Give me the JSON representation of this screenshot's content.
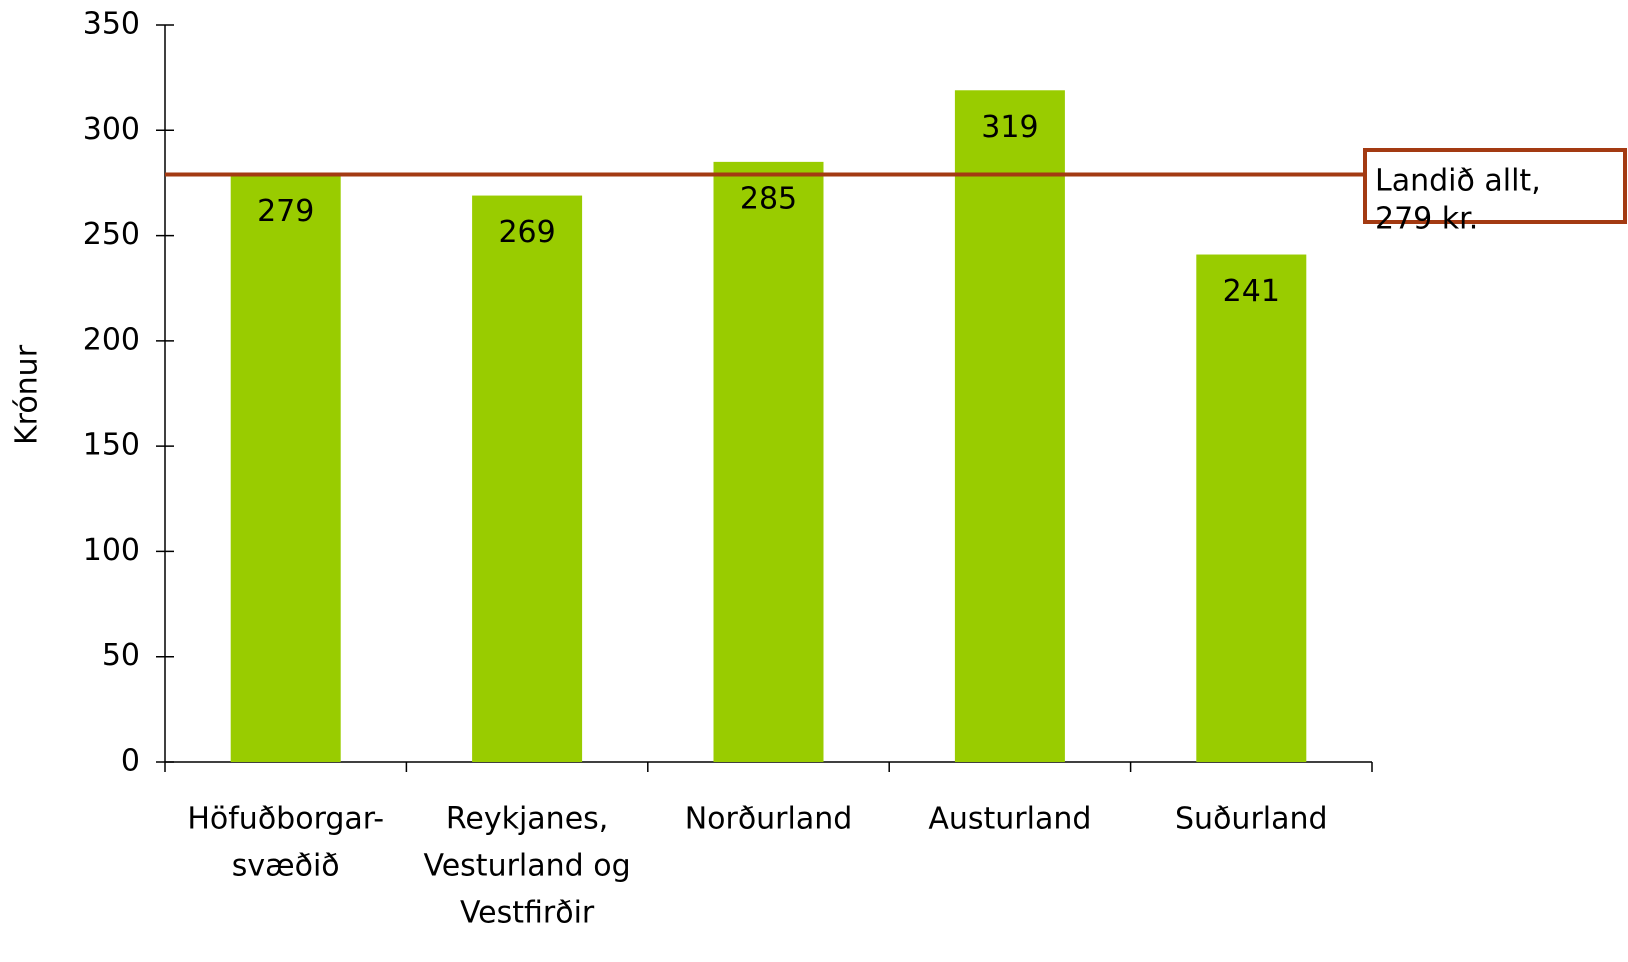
{
  "chart_data": {
    "type": "bar",
    "y_label": "Krónur",
    "categories": [
      [
        "Höfuðborgar-",
        "svæðið"
      ],
      [
        "Reykjanes,",
        "Vesturland og",
        "Vestfirðir"
      ],
      [
        "Norðurland"
      ],
      [
        "Austurland"
      ],
      [
        "Suðurland"
      ]
    ],
    "values": [
      279,
      269,
      285,
      319,
      241
    ],
    "color": "#99cc00",
    "ylim": [
      0,
      350
    ],
    "yticks": [
      0,
      50,
      100,
      150,
      200,
      250,
      300,
      350
    ],
    "grid": false,
    "reference_line": {
      "value": 279,
      "label": [
        "Landið allt,",
        "279 kr."
      ],
      "color": "#a33a12"
    }
  }
}
